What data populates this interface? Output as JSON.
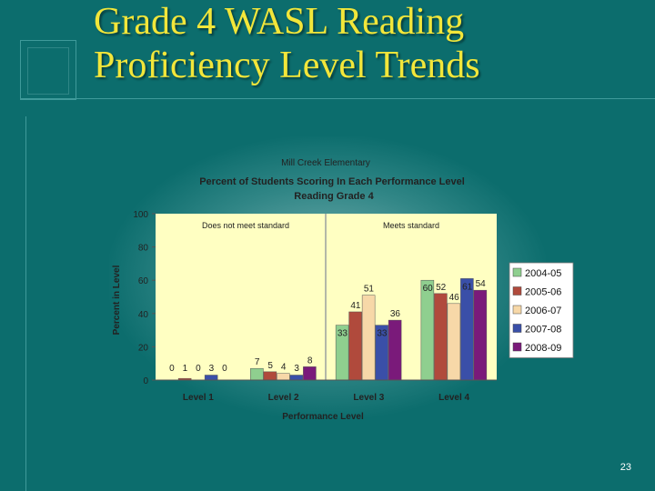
{
  "slide": {
    "title_line1": "Grade 4 WASL Reading",
    "title_line2": "Proficiency Level Trends",
    "page_number": "23"
  },
  "chart_data": {
    "type": "bar",
    "title": "Mill Creek Elementary",
    "subtitle_line1": "Percent of Students Scoring In Each Performance Level",
    "subtitle_line2": "Reading Grade 4",
    "xlabel": "Performance Level",
    "ylabel": "Percent in Level",
    "ylim": [
      0,
      100
    ],
    "yticks": [
      0,
      20,
      40,
      60,
      80,
      100
    ],
    "grid": false,
    "legend_position": "right",
    "categories": [
      "Level 1",
      "Level 2",
      "Level 3",
      "Level 4"
    ],
    "regions": [
      {
        "label": "Does not meet standard"
      },
      {
        "label": "Meets standard"
      }
    ],
    "series": [
      {
        "name": "2004-05",
        "color": "#8fcf8f",
        "values": [
          0,
          7,
          33,
          60
        ]
      },
      {
        "name": "2005-06",
        "color": "#b04a3c",
        "values": [
          1,
          5,
          41,
          52
        ]
      },
      {
        "name": "2006-07",
        "color": "#f7d8a8",
        "values": [
          0,
          4,
          51,
          46
        ]
      },
      {
        "name": "2007-08",
        "color": "#3a4fa8",
        "values": [
          3,
          3,
          33,
          61
        ]
      },
      {
        "name": "2008-09",
        "color": "#7a1a7a",
        "values": [
          0,
          8,
          36,
          54
        ]
      }
    ]
  }
}
